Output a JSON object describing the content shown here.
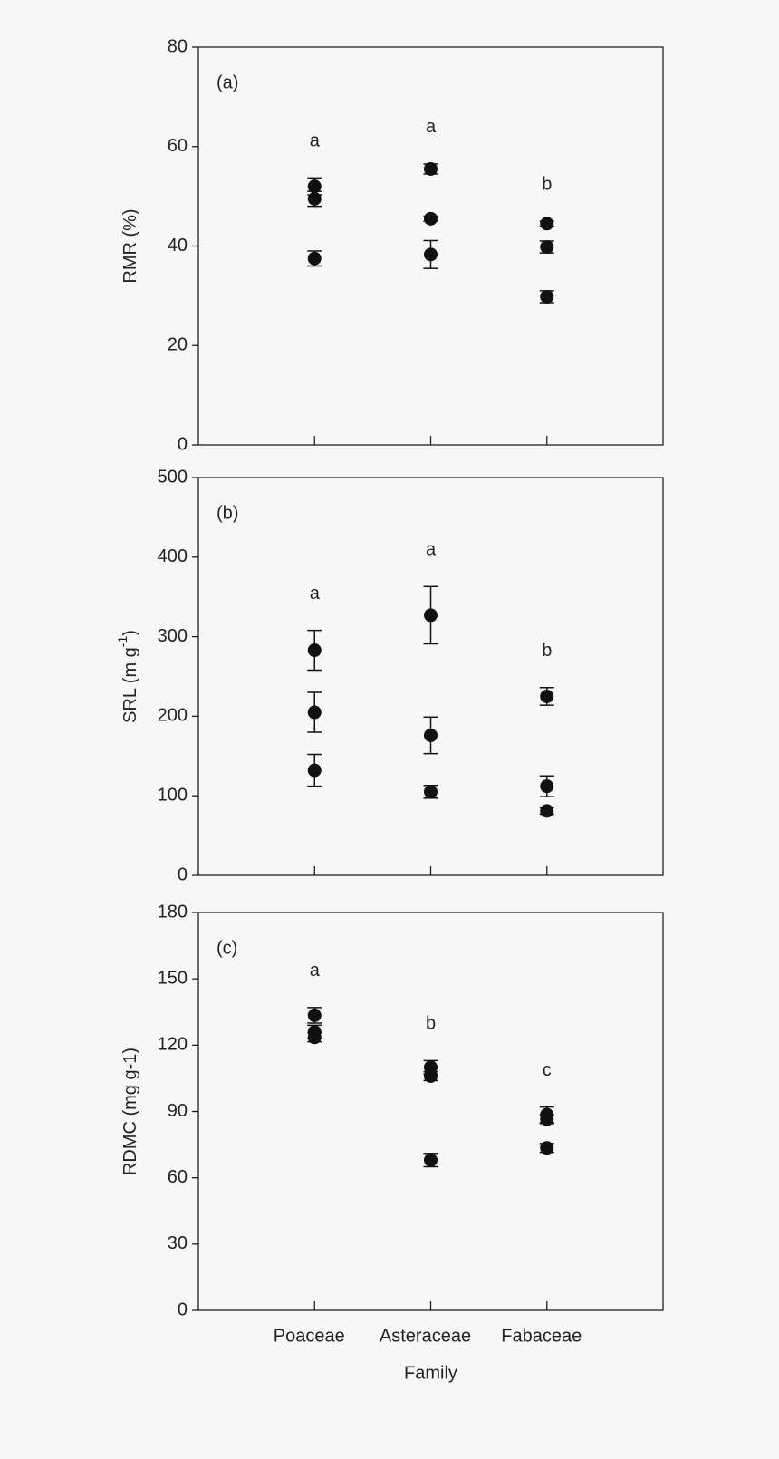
{
  "categories": [
    "Poaceae",
    "Asteraceae",
    "Fabaceae"
  ],
  "xlabel": "Family",
  "chart_data": [
    {
      "type": "errorbar",
      "panel_label": "(a)",
      "ylabel": "RMR (%)",
      "ylim": [
        0,
        80
      ],
      "yticks": [
        0,
        20,
        40,
        60,
        80
      ],
      "values": [
        [
          52,
          49.5,
          37.5
        ],
        [
          55.5,
          45.5,
          38.3
        ],
        [
          44.5,
          39.8,
          29.8
        ]
      ],
      "errors": [
        [
          1.7,
          1.5,
          1.5
        ],
        [
          1,
          0.5,
          2.8
        ],
        [
          0.5,
          1.2,
          1.2
        ]
      ],
      "letters": [
        "a",
        "a",
        "b"
      ],
      "color": "#111111"
    },
    {
      "type": "errorbar",
      "panel_label": "(b)",
      "ylabel": "SRL (m g",
      "ylabel_sup": "-1",
      "ylabel_end": ")",
      "ylim": [
        0,
        500
      ],
      "yticks": [
        0,
        100,
        200,
        300,
        400,
        500
      ],
      "values": [
        [
          283,
          205,
          132
        ],
        [
          327,
          176,
          105
        ],
        [
          225,
          112,
          81
        ]
      ],
      "errors": [
        [
          25,
          25,
          20
        ],
        [
          36,
          23,
          8
        ],
        [
          11,
          13,
          4
        ]
      ],
      "letters": [
        "a",
        "a",
        "b"
      ],
      "color": "#111111"
    },
    {
      "type": "errorbar",
      "panel_label": "(c)",
      "ylabel": "RDMC (mg g-1)",
      "ylim": [
        0,
        180
      ],
      "yticks": [
        0,
        30,
        60,
        90,
        120,
        150,
        180
      ],
      "values": [
        [
          133.5,
          126,
          123.5
        ],
        [
          110,
          106,
          68
        ],
        [
          88.5,
          86.5,
          73.5
        ]
      ],
      "errors": [
        [
          3.5,
          3,
          2
        ],
        [
          3,
          2,
          3
        ],
        [
          3.5,
          2,
          2
        ]
      ],
      "letters": [
        "a",
        "b",
        "c"
      ],
      "color": "#111111"
    }
  ]
}
